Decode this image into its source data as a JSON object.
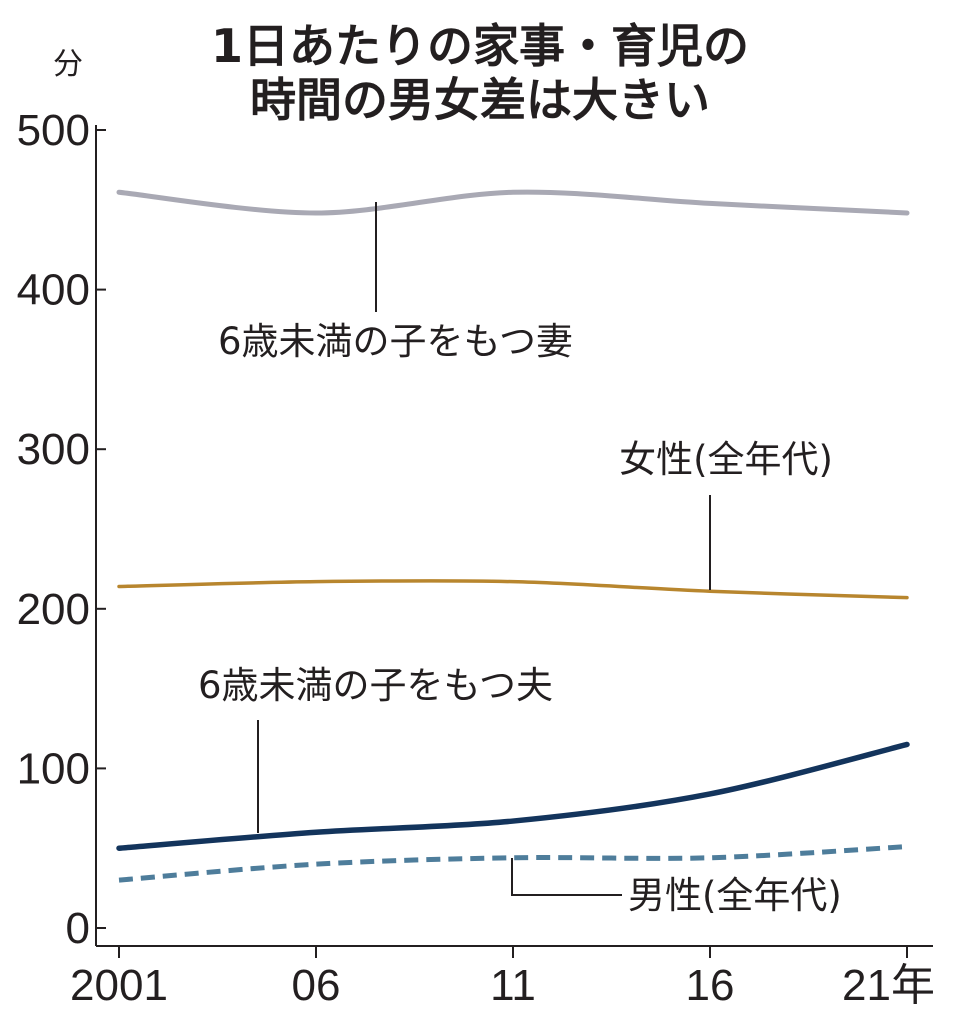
{
  "chart_data": {
    "type": "line",
    "title": [
      "1日あたりの家事・育児の",
      "時間の男女差は大きい"
    ],
    "y_unit": "分",
    "x": [
      "2001",
      "06",
      "11",
      "16",
      "21年"
    ],
    "ylim": [
      0,
      500
    ],
    "yticks": [
      "0",
      "100",
      "200",
      "300",
      "400",
      "500"
    ],
    "grid": false,
    "series": [
      {
        "name": "6歳未満の子をもつ妻",
        "values": [
          461,
          448,
          461,
          454,
          448
        ],
        "color": "#a9a9b4",
        "dash": false
      },
      {
        "name": "女性(全年代)",
        "values": [
          214,
          217,
          217,
          211,
          207
        ],
        "color": "#b8862e",
        "dash": false
      },
      {
        "name": "6歳未満の子をもつ夫",
        "values": [
          50,
          60,
          67,
          84,
          115
        ],
        "color": "#13345c",
        "dash": false
      },
      {
        "name": "男性(全年代)",
        "values": [
          30,
          40,
          44,
          44,
          51
        ],
        "color": "#4e7d9b",
        "dash": true
      }
    ]
  }
}
